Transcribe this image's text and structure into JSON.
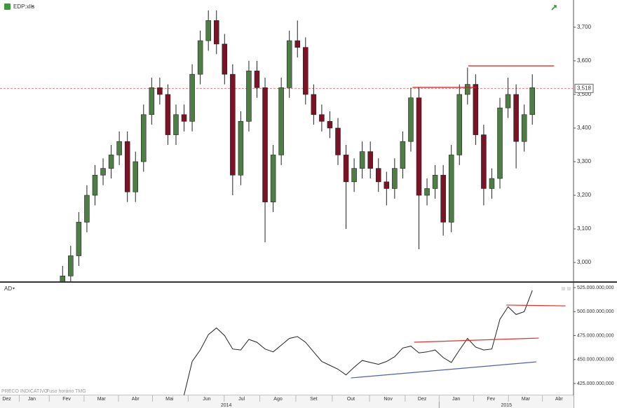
{
  "chart_data": [
    {
      "type": "candlestick",
      "title": "EDP:xlis",
      "x": [
        6,
        7,
        8,
        9,
        10,
        11,
        12,
        13,
        14,
        15,
        16,
        17,
        18,
        19,
        20,
        21,
        22,
        23,
        24,
        25,
        26,
        27,
        28,
        29,
        30,
        31,
        32,
        33,
        34,
        35,
        36,
        37,
        38,
        39,
        40,
        41,
        42,
        43,
        44,
        45,
        46,
        47,
        48,
        49,
        50,
        51,
        52,
        53,
        54,
        55,
        56,
        57,
        58,
        59,
        60,
        61,
        62,
        63,
        64
      ],
      "open": [
        2.94,
        2.96,
        3.02,
        3.12,
        3.2,
        3.26,
        3.28,
        3.32,
        3.36,
        3.21,
        3.3,
        3.44,
        3.52,
        3.5,
        3.38,
        3.44,
        3.42,
        3.56,
        3.66,
        3.72,
        3.65,
        3.56,
        3.26,
        3.42,
        3.57,
        3.52,
        3.18,
        3.32,
        3.52,
        3.66,
        3.64,
        3.5,
        3.44,
        3.42,
        3.4,
        3.32,
        3.24,
        3.28,
        3.33,
        3.28,
        3.24,
        3.22,
        3.28,
        3.36,
        3.49,
        3.2,
        3.22,
        3.26,
        3.12,
        3.32,
        3.5,
        3.53,
        3.38,
        3.22,
        3.25,
        3.46,
        3.5,
        3.36,
        3.44
      ],
      "high": [
        2.99,
        3.05,
        3.15,
        3.23,
        3.29,
        3.31,
        3.35,
        3.39,
        3.39,
        3.33,
        3.47,
        3.55,
        3.55,
        3.53,
        3.47,
        3.47,
        3.59,
        3.69,
        3.75,
        3.75,
        3.68,
        3.59,
        3.45,
        3.6,
        3.6,
        3.55,
        3.35,
        3.55,
        3.69,
        3.72,
        3.67,
        3.53,
        3.47,
        3.45,
        3.43,
        3.35,
        3.31,
        3.36,
        3.36,
        3.31,
        3.27,
        3.31,
        3.39,
        3.52,
        3.52,
        3.25,
        3.29,
        3.29,
        3.35,
        3.53,
        3.58,
        3.56,
        3.41,
        3.28,
        3.49,
        3.55,
        3.53,
        3.47,
        3.56
      ],
      "low": [
        2.92,
        2.93,
        2.99,
        3.09,
        3.17,
        3.23,
        3.25,
        3.29,
        3.18,
        3.18,
        3.27,
        3.41,
        3.47,
        3.35,
        3.35,
        3.39,
        3.39,
        3.53,
        3.63,
        3.62,
        3.53,
        3.2,
        3.23,
        3.39,
        3.49,
        3.06,
        3.15,
        3.29,
        3.49,
        3.61,
        3.47,
        3.41,
        3.39,
        3.37,
        3.29,
        3.1,
        3.21,
        3.25,
        3.25,
        3.21,
        3.17,
        3.19,
        3.25,
        3.33,
        3.04,
        3.17,
        3.19,
        3.08,
        3.09,
        3.29,
        3.47,
        3.35,
        3.17,
        3.19,
        3.22,
        3.43,
        3.28,
        3.33,
        3.41
      ],
      "close": [
        2.96,
        3.02,
        3.12,
        3.2,
        3.26,
        3.28,
        3.32,
        3.36,
        3.21,
        3.3,
        3.44,
        3.52,
        3.5,
        3.38,
        3.44,
        3.42,
        3.56,
        3.66,
        3.72,
        3.65,
        3.56,
        3.26,
        3.42,
        3.57,
        3.52,
        3.18,
        3.32,
        3.52,
        3.66,
        3.64,
        3.5,
        3.44,
        3.42,
        3.4,
        3.32,
        3.24,
        3.28,
        3.33,
        3.28,
        3.24,
        3.22,
        3.28,
        3.36,
        3.49,
        3.2,
        3.22,
        3.26,
        3.12,
        3.32,
        3.5,
        3.53,
        3.38,
        3.22,
        3.25,
        3.46,
        3.5,
        3.36,
        3.44,
        3.52
      ],
      "up_color": "#4e7d45",
      "down_color": "#7b1326",
      "ylim": [
        2.944,
        3.781
      ],
      "yticks": [
        {
          "value": 3.0,
          "label": "3,000"
        },
        {
          "value": 3.1,
          "label": "3,100"
        },
        {
          "value": 3.2,
          "label": "3,200"
        },
        {
          "value": 3.3,
          "label": "3,300"
        },
        {
          "value": 3.4,
          "label": "3,400"
        },
        {
          "value": 3.5,
          "label": "3,500"
        },
        {
          "value": 3.6,
          "label": "3,600"
        },
        {
          "value": 3.7,
          "label": "3,700"
        }
      ],
      "last_price": {
        "value": 3.518,
        "label": "3,518"
      },
      "trend_lines": [
        {
          "x": [
            49.2,
            57.1
          ],
          "y": [
            3.521,
            3.521
          ],
          "color": "#d02020"
        },
        {
          "x": [
            56.1,
            66.7
          ],
          "y": [
            3.585,
            3.585
          ],
          "color": "#d02020"
        }
      ]
    },
    {
      "type": "line",
      "title": "AD",
      "x": [
        21,
        22,
        23,
        24,
        25,
        26,
        27,
        28,
        29,
        30,
        31,
        32,
        33,
        34,
        35,
        36,
        37,
        38,
        39,
        40,
        41,
        42,
        43,
        44,
        45,
        46,
        47,
        48,
        49,
        50,
        51,
        52,
        53,
        54,
        55,
        56,
        57,
        58,
        59,
        60,
        61,
        62,
        63,
        64
      ],
      "values": [
        413000000,
        448000000,
        460000000,
        476000000,
        483000000,
        475000000,
        461000000,
        460000000,
        471000000,
        468000000,
        461000000,
        458000000,
        465000000,
        472000000,
        474000000,
        468000000,
        458000000,
        448000000,
        444000000,
        440000000,
        434000000,
        442000000,
        449000000,
        447000000,
        445000000,
        448000000,
        453000000,
        462000000,
        464000000,
        457000000,
        458000000,
        460000000,
        452000000,
        447000000,
        460000000,
        472000000,
        463000000,
        460000000,
        461000000,
        492000000,
        505000000,
        497000000,
        500000000,
        522000000
      ],
      "color": "#222222",
      "ylim": [
        412600000,
        529400000
      ],
      "yticks": [
        {
          "value": 425000000,
          "label": "425.000.000,000"
        },
        {
          "value": 450000000,
          "label": "450.000.000,000"
        },
        {
          "value": 475000000,
          "label": "475.000.000,000"
        },
        {
          "value": 500000000,
          "label": "500.000.000,000"
        },
        {
          "value": 525000000,
          "label": "525.000.000,000"
        }
      ],
      "trend_lines": [
        {
          "x": [
            49.4,
            64.8
          ],
          "y": [
            468100000,
            472400000
          ],
          "color": "#e03030"
        },
        {
          "x": [
            60.8,
            68.1
          ],
          "y": [
            506800000,
            506000000
          ],
          "color": "#e03030"
        },
        {
          "x": [
            41.6,
            64.5
          ],
          "y": [
            430800000,
            447600000
          ],
          "color": "#5060b0"
        }
      ]
    }
  ],
  "x_axis": {
    "xlim": [
      -1.73,
      69.09
    ],
    "xticks": [
      {
        "value": -0.9,
        "label": "Dez"
      },
      {
        "value": 2.2,
        "label": "Jan"
      },
      {
        "value": 6.5,
        "label": "Fev"
      },
      {
        "value": 10.8,
        "label": "Mar"
      },
      {
        "value": 15.0,
        "label": "Abr"
      },
      {
        "value": 19.2,
        "label": "Mai"
      },
      {
        "value": 23.8,
        "label": "Jun"
      },
      {
        "value": 28.1,
        "label": "Jul"
      },
      {
        "value": 32.6,
        "label": "Ago"
      },
      {
        "value": 37.0,
        "label": "Set"
      },
      {
        "value": 41.6,
        "label": "Out"
      },
      {
        "value": 46.2,
        "label": "Nov"
      },
      {
        "value": 50.4,
        "label": "Dez"
      },
      {
        "value": 54.6,
        "label": "Jan"
      },
      {
        "value": 58.9,
        "label": "Fev"
      },
      {
        "value": 63.2,
        "label": "Mar"
      },
      {
        "value": 67.3,
        "label": "Abr"
      }
    ],
    "year_ticks": [
      {
        "value": 26.2,
        "label": "2014"
      },
      {
        "value": 60.8,
        "label": "2015"
      }
    ]
  },
  "footer_note": [
    "PRECO INDICATIVO",
    "Fuso horário TMG"
  ]
}
